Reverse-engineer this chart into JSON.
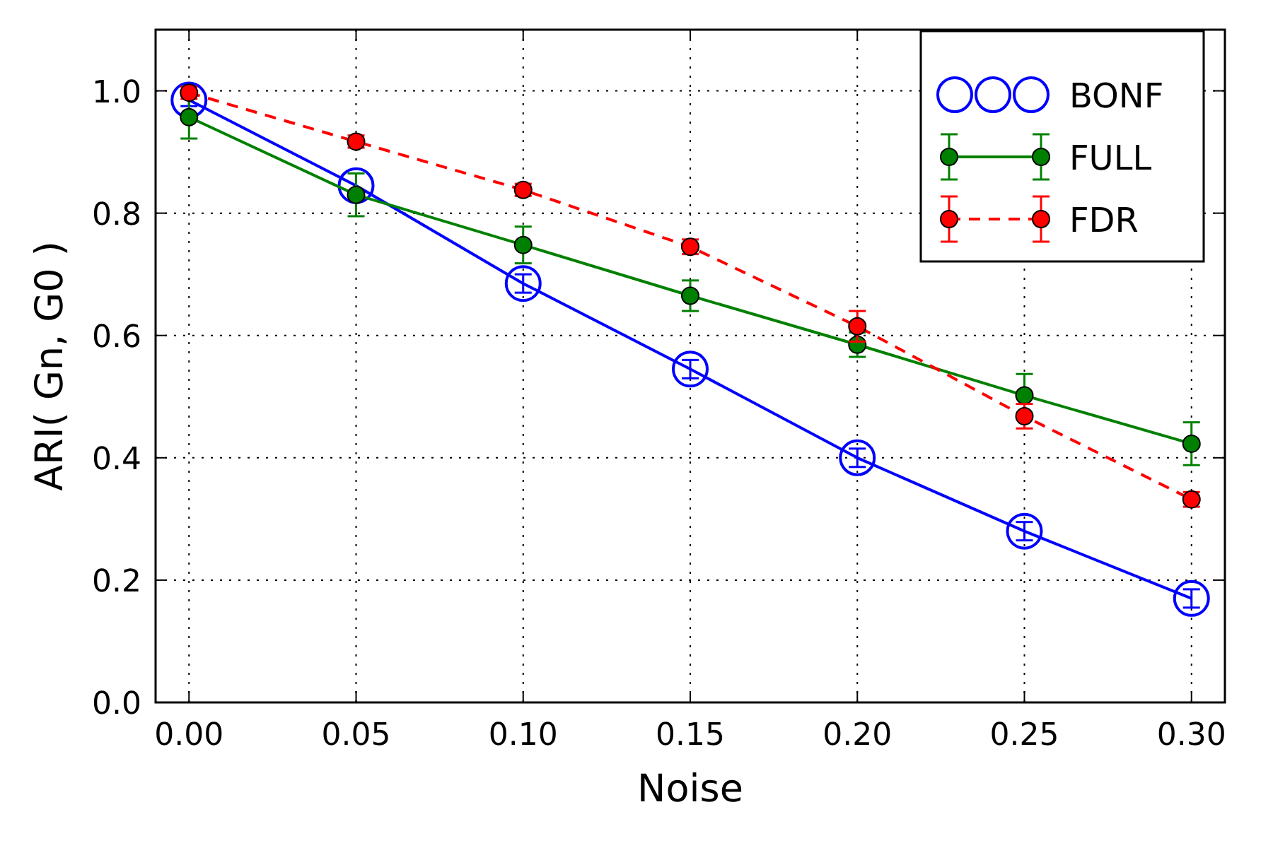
{
  "chart_data": {
    "type": "line",
    "xlabel": "Noise",
    "ylabel": "ARI( Gn, G0 )",
    "x": [
      0,
      0.05,
      0.1,
      0.15,
      0.2,
      0.25,
      0.3
    ],
    "series": [
      {
        "name": "BONF",
        "color": "#0000ff",
        "line_style": "solid",
        "values": [
          0.985,
          0.845,
          0.685,
          0.545,
          0.4,
          0.28,
          0.17
        ],
        "errors": [
          0.01,
          null,
          0.015,
          0.015,
          0.015,
          0.015,
          0.015
        ]
      },
      {
        "name": "FULL",
        "color": "#008000",
        "line_style": "solid",
        "values": [
          0.957,
          0.83,
          0.748,
          0.665,
          0.585,
          0.502,
          0.423
        ],
        "errors": [
          0.035,
          0.035,
          0.03,
          0.025,
          0.02,
          0.035,
          0.035
        ]
      },
      {
        "name": "FDR",
        "color": "#ff0000",
        "line_style": "dashed",
        "values": [
          0.997,
          0.917,
          0.838,
          0.745,
          0.615,
          0.468,
          0.332
        ],
        "errors": [
          0.01,
          0.01,
          0.01,
          0.012,
          0.025,
          0.02,
          0.012
        ]
      }
    ],
    "marker": "circle",
    "xlim": [
      -0.01,
      0.31
    ],
    "ylim": [
      0,
      1.1
    ],
    "xticks": [
      {
        "value": 0,
        "label": "0.00"
      },
      {
        "value": 0.05,
        "label": "0.05"
      },
      {
        "value": 0.1,
        "label": "0.10"
      },
      {
        "value": 0.15,
        "label": "0.15"
      },
      {
        "value": 0.2,
        "label": "0.20"
      },
      {
        "value": 0.25,
        "label": "0.25"
      },
      {
        "value": 0.3,
        "label": "0.30"
      }
    ],
    "yticks": [
      {
        "value": 0,
        "label": "0.0"
      },
      {
        "value": 0.2,
        "label": "0.2"
      },
      {
        "value": 0.4,
        "label": "0.4"
      },
      {
        "value": 0.6,
        "label": "0.6"
      },
      {
        "value": 0.8,
        "label": "0.8"
      },
      {
        "value": 1,
        "label": "1.0"
      }
    ],
    "grid": true,
    "legend": "top right"
  }
}
